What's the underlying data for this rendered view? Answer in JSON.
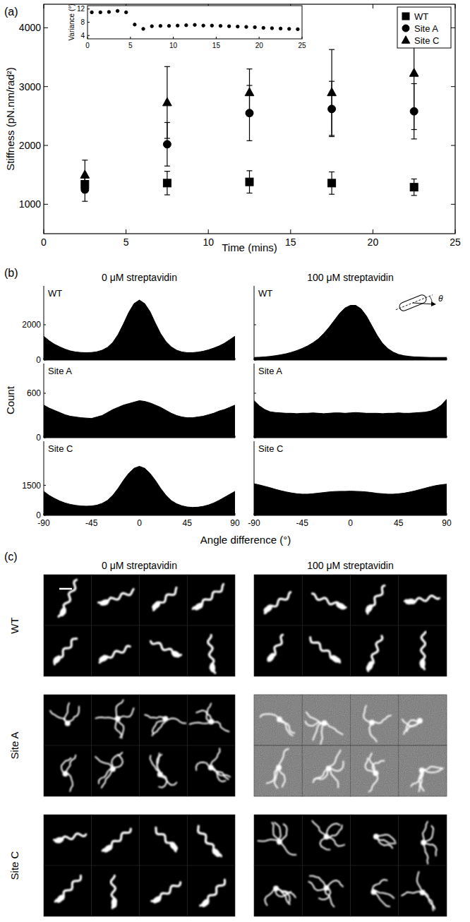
{
  "chart_data": [
    {
      "type": "scatter",
      "xlabel": "Time (mins)",
      "ylabel": "Stiffness (pN.nm/rad²)",
      "xlim": [
        0,
        25
      ],
      "xticks": [
        0,
        5,
        10,
        15,
        20,
        25
      ],
      "ylim": [
        500,
        4400
      ],
      "yticks": [
        1000,
        2000,
        3000,
        4000
      ],
      "legend": "upper right",
      "x": [
        2.5,
        7.5,
        12.5,
        17.5,
        22.5
      ],
      "series": [
        {
          "name": "WT",
          "marker": "square",
          "color": "#000000",
          "values": [
            1340,
            1360,
            1380,
            1360,
            1290
          ],
          "errors": [
            140,
            200,
            190,
            190,
            140
          ]
        },
        {
          "name": "Site A",
          "marker": "circle",
          "color": "#000000",
          "values": [
            1250,
            2020,
            2550,
            2620,
            2580
          ],
          "errors": [
            200,
            370,
            470,
            470,
            470
          ]
        },
        {
          "name": "Site C",
          "marker": "triangle",
          "color": "#000000",
          "values": [
            1500,
            2730,
            2900,
            2900,
            3230
          ],
          "errors": [
            250,
            610,
            400,
            730,
            960
          ]
        }
      ]
    },
    {
      "type": "scatter",
      "ylabel": "Variance (°)",
      "xlim": [
        0,
        25
      ],
      "xticks": [
        0,
        5,
        10,
        15,
        20,
        25
      ],
      "ylim": [
        3,
        13
      ],
      "yticks": [
        4,
        8,
        12
      ],
      "marker": "circle",
      "color": "#000000",
      "x": [
        0.5,
        1.5,
        2.5,
        3.5,
        4.5,
        5.5,
        6.5,
        7.5,
        8.5,
        9.5,
        10.5,
        11.5,
        12.5,
        13.5,
        14.5,
        15.5,
        16.5,
        17.5,
        18.5,
        19.5,
        20.5,
        21.5,
        22.5,
        23.5,
        24.5
      ],
      "values": [
        11,
        11,
        11.1,
        11.4,
        11,
        7.3,
        6,
        6.8,
        6.9,
        6.9,
        7,
        7.1,
        7.2,
        7,
        7,
        6.9,
        6.8,
        6.7,
        6.6,
        6.5,
        6.3,
        6.2,
        6.1,
        6,
        5.9
      ]
    },
    {
      "type": "area",
      "title": "WT",
      "color": "#000000",
      "tick_labels": "y",
      "xlim": [
        -90,
        90
      ],
      "xticks": [
        -90,
        -45,
        0,
        45,
        90
      ],
      "ylim": [
        0,
        4200
      ],
      "yticks": [
        0,
        2000
      ],
      "x": [
        -90,
        -85,
        -80,
        -75,
        -70,
        -65,
        -60,
        -55,
        -50,
        -45,
        -40,
        -35,
        -30,
        -25,
        -20,
        -15,
        -10,
        -5,
        0,
        5,
        10,
        15,
        20,
        25,
        30,
        35,
        40,
        45,
        50,
        55,
        60,
        65,
        70,
        75,
        80,
        85,
        90
      ],
      "values": [
        1350,
        1100,
        900,
        750,
        620,
        520,
        460,
        430,
        420,
        430,
        470,
        560,
        720,
        1000,
        1450,
        2050,
        2700,
        3200,
        3400,
        3200,
        2750,
        2100,
        1500,
        1050,
        750,
        560,
        460,
        420,
        420,
        450,
        500,
        580,
        680,
        800,
        950,
        1150,
        1350
      ]
    },
    {
      "type": "area",
      "title": "WT",
      "annotation": "θ",
      "color": "#000000",
      "tick_labels": false,
      "xlim": [
        -90,
        90
      ],
      "xticks": [
        -90,
        -45,
        0,
        45,
        90
      ],
      "ylim": [
        0,
        4200
      ],
      "yticks": [
        0,
        2000
      ],
      "x": [
        -90,
        -85,
        -80,
        -75,
        -70,
        -65,
        -60,
        -55,
        -50,
        -45,
        -40,
        -35,
        -30,
        -25,
        -20,
        -15,
        -10,
        -5,
        0,
        5,
        10,
        15,
        20,
        25,
        30,
        35,
        40,
        45,
        50,
        55,
        60,
        65,
        70,
        75,
        80,
        85,
        90
      ],
      "values": [
        150,
        160,
        180,
        210,
        250,
        300,
        360,
        440,
        540,
        660,
        800,
        980,
        1200,
        1500,
        1850,
        2250,
        2650,
        2950,
        3100,
        3100,
        2900,
        2500,
        1950,
        1400,
        950,
        650,
        450,
        320,
        250,
        210,
        180,
        170,
        160,
        150,
        150,
        150,
        150
      ]
    },
    {
      "type": "area",
      "title": "Site A",
      "color": "#000000",
      "tick_labels": "y",
      "xlim": [
        -90,
        90
      ],
      "xticks": [
        -90,
        -45,
        0,
        45,
        90
      ],
      "ylim": [
        0,
        1000
      ],
      "yticks": [
        0,
        600
      ],
      "x": [
        -90,
        -85,
        -80,
        -75,
        -70,
        -65,
        -60,
        -55,
        -50,
        -45,
        -40,
        -35,
        -30,
        -25,
        -20,
        -15,
        -10,
        -5,
        0,
        5,
        10,
        15,
        20,
        25,
        30,
        35,
        40,
        45,
        50,
        55,
        60,
        65,
        70,
        75,
        80,
        85,
        90
      ],
      "values": [
        440,
        400,
        370,
        340,
        310,
        290,
        280,
        270,
        265,
        260,
        280,
        300,
        340,
        380,
        410,
        440,
        460,
        480,
        500,
        490,
        470,
        440,
        410,
        370,
        330,
        300,
        280,
        270,
        270,
        280,
        290,
        310,
        330,
        360,
        380,
        410,
        440
      ]
    },
    {
      "type": "area",
      "title": "Site A",
      "color": "#000000",
      "tick_labels": false,
      "xlim": [
        -90,
        90
      ],
      "xticks": [
        -90,
        -45,
        0,
        45,
        90
      ],
      "ylim": [
        0,
        1000
      ],
      "yticks": [
        0,
        600
      ],
      "x": [
        -90,
        -85,
        -80,
        -75,
        -70,
        -65,
        -60,
        -55,
        -50,
        -45,
        -40,
        -35,
        -30,
        -25,
        -20,
        -15,
        -10,
        -5,
        0,
        5,
        10,
        15,
        20,
        25,
        30,
        35,
        40,
        45,
        50,
        55,
        60,
        65,
        70,
        75,
        80,
        85,
        90
      ],
      "values": [
        500,
        430,
        380,
        350,
        340,
        335,
        330,
        330,
        325,
        330,
        330,
        335,
        330,
        325,
        330,
        335,
        335,
        330,
        335,
        340,
        335,
        330,
        330,
        330,
        325,
        330,
        330,
        335,
        330,
        330,
        335,
        340,
        345,
        360,
        390,
        440,
        520
      ]
    },
    {
      "type": "area",
      "title": "Site C",
      "color": "#000000",
      "xlim": [
        -90,
        90
      ],
      "xticks": [
        -90,
        -45,
        0,
        45,
        90
      ],
      "ylim": [
        0,
        3700
      ],
      "yticks": [
        0,
        1500
      ],
      "x": [
        -90,
        -85,
        -80,
        -75,
        -70,
        -65,
        -60,
        -55,
        -50,
        -45,
        -40,
        -35,
        -30,
        -25,
        -20,
        -15,
        -10,
        -5,
        0,
        5,
        10,
        15,
        20,
        25,
        30,
        35,
        40,
        45,
        50,
        55,
        60,
        65,
        70,
        75,
        80,
        85,
        90
      ],
      "values": [
        1200,
        1000,
        850,
        720,
        620,
        550,
        500,
        470,
        460,
        470,
        510,
        600,
        750,
        1000,
        1350,
        1750,
        2100,
        2350,
        2450,
        2350,
        2100,
        1750,
        1350,
        1000,
        740,
        580,
        480,
        420,
        400,
        410,
        450,
        520,
        620,
        750,
        900,
        1050,
        1200
      ]
    },
    {
      "type": "area",
      "title": "Site C",
      "color": "#000000",
      "tick_labels": "x",
      "xlim": [
        -90,
        90
      ],
      "xticks": [
        -90,
        -45,
        0,
        45,
        90
      ],
      "ylim": [
        0,
        3700
      ],
      "yticks": [
        0,
        1500
      ],
      "x": [
        -90,
        -85,
        -80,
        -75,
        -70,
        -65,
        -60,
        -55,
        -50,
        -45,
        -40,
        -35,
        -30,
        -25,
        -20,
        -15,
        -10,
        -5,
        0,
        5,
        10,
        15,
        20,
        25,
        30,
        35,
        40,
        45,
        50,
        55,
        60,
        65,
        70,
        75,
        80,
        85,
        90
      ],
      "values": [
        1580,
        1520,
        1450,
        1380,
        1300,
        1230,
        1170,
        1120,
        1080,
        1060,
        1060,
        1080,
        1110,
        1140,
        1170,
        1190,
        1200,
        1200,
        1210,
        1200,
        1190,
        1170,
        1140,
        1100,
        1080,
        1060,
        1060,
        1080,
        1110,
        1160,
        1220,
        1290,
        1360,
        1430,
        1490,
        1530,
        1560
      ]
    }
  ],
  "panels": {
    "a": "(a)",
    "b": "(b)",
    "c": "(c)"
  },
  "panel_b": {
    "columns": [
      "0 μM streptavidin",
      "100 μM streptavidin"
    ],
    "ylabel": "Count",
    "xlabel": "Angle difference (°)"
  },
  "panel_c": {
    "columns": [
      "0 μM streptavidin",
      "100 μM streptavidin"
    ],
    "rows": [
      "WT",
      "Site A",
      "Site C"
    ]
  }
}
